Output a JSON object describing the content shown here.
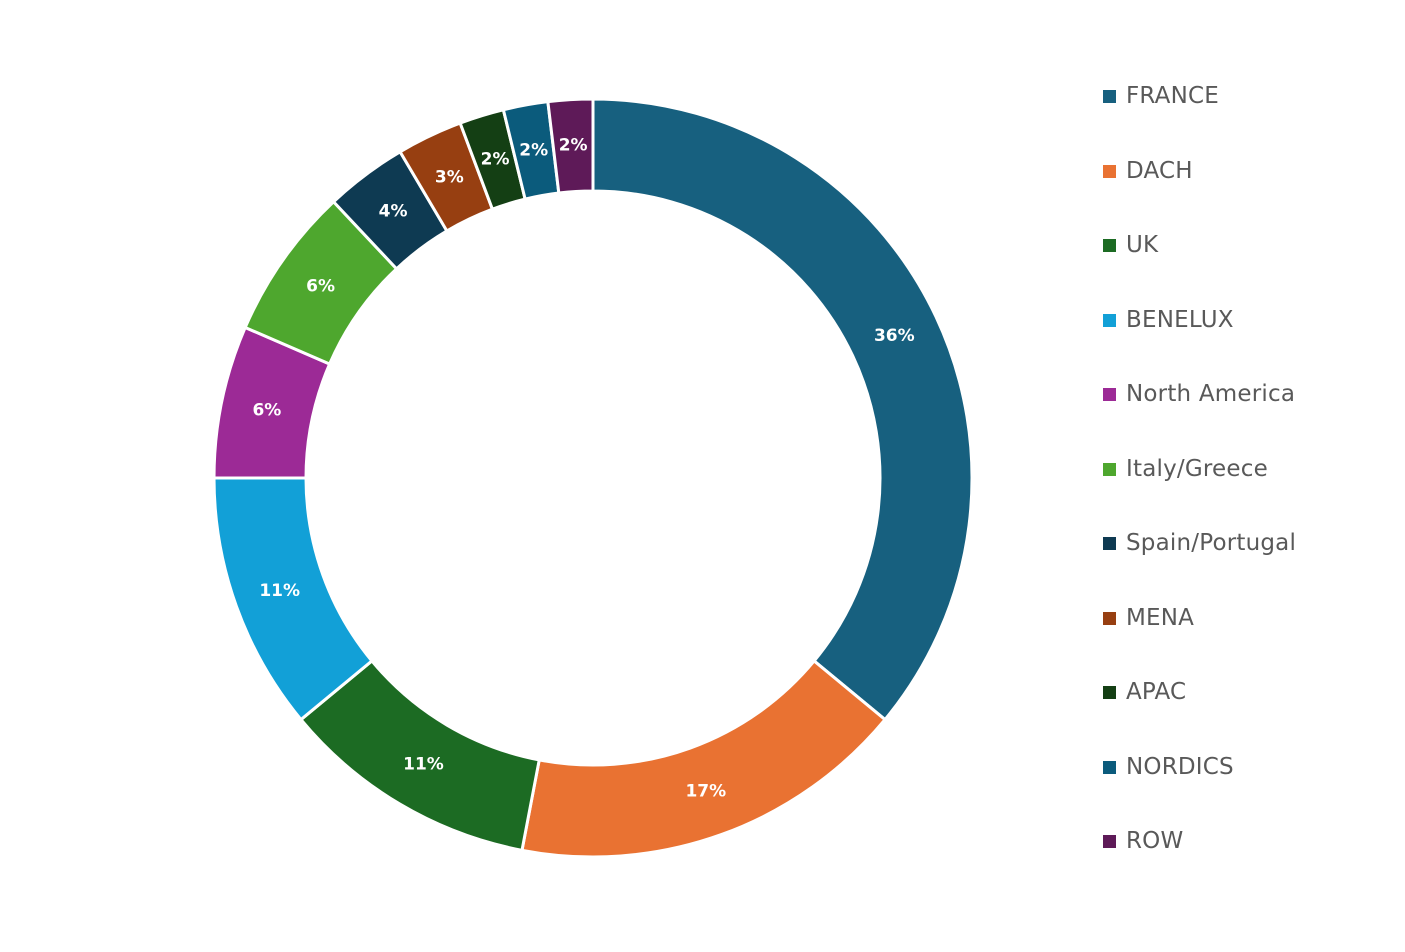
{
  "chart_data": {
    "type": "pie",
    "variant": "donut",
    "legend_position": "right",
    "slices": [
      {
        "label": "FRANCE",
        "value": 36,
        "display": "36%",
        "color": "#17607f"
      },
      {
        "label": "DACH",
        "value": 17,
        "display": "17%",
        "color": "#e97232"
      },
      {
        "label": "UK",
        "value": 11,
        "display": "11%",
        "color": "#1c6b23"
      },
      {
        "label": "BENELUX",
        "value": 11,
        "display": "11%",
        "color": "#12a0d7"
      },
      {
        "label": "North America",
        "value": 6.5,
        "display": "6%",
        "color": "#9c2a96"
      },
      {
        "label": "Italy/Greece",
        "value": 6.5,
        "display": "6%",
        "color": "#4ea72e"
      },
      {
        "label": "Spain/Portugal",
        "value": 3.5,
        "display": "4%",
        "color": "#0e3a52"
      },
      {
        "label": "MENA",
        "value": 2.8,
        "display": "3%",
        "color": "#973f11"
      },
      {
        "label": "APAC",
        "value": 1.9,
        "display": "2%",
        "color": "#143f14"
      },
      {
        "label": "NORDICS",
        "value": 1.9,
        "display": "2%",
        "color": "#0b5b7c"
      },
      {
        "label": "ROW",
        "value": 1.9,
        "display": "2%",
        "color": "#5e1a58"
      }
    ]
  }
}
